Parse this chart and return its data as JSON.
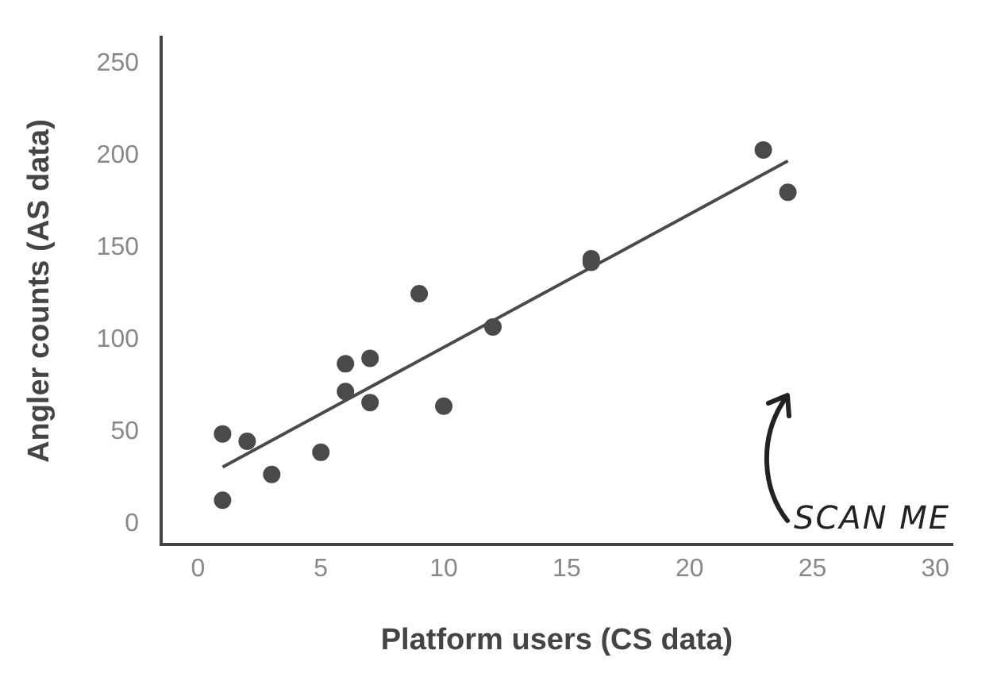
{
  "chart_data": {
    "type": "scatter",
    "xlabel": "Platform users (CS data)",
    "ylabel": "Angler counts (AS data)",
    "xlim": [
      -1.5,
      30.7
    ],
    "ylim": [
      -11,
      264
    ],
    "xticks": [
      0,
      5,
      10,
      15,
      20,
      25,
      30
    ],
    "yticks": [
      0,
      50,
      100,
      150,
      200,
      250
    ],
    "grid": false,
    "legend": false,
    "series": [
      {
        "color": "#4a4a4a",
        "marker": "circle",
        "x": [
          1,
          1,
          2,
          3,
          5,
          6,
          6,
          7,
          7,
          9,
          10,
          12,
          16,
          16,
          23,
          24
        ],
        "values": [
          49,
          13,
          45,
          27,
          39,
          87,
          72,
          90,
          66,
          125,
          64,
          107,
          144,
          142,
          203,
          180
        ]
      },
      {
        "type": "line",
        "color": "#4a4a4a",
        "x": [
          1,
          24
        ],
        "values": [
          31,
          197
        ],
        "line_style": "solid"
      }
    ],
    "annotations": [
      "SCAN ME"
    ]
  }
}
